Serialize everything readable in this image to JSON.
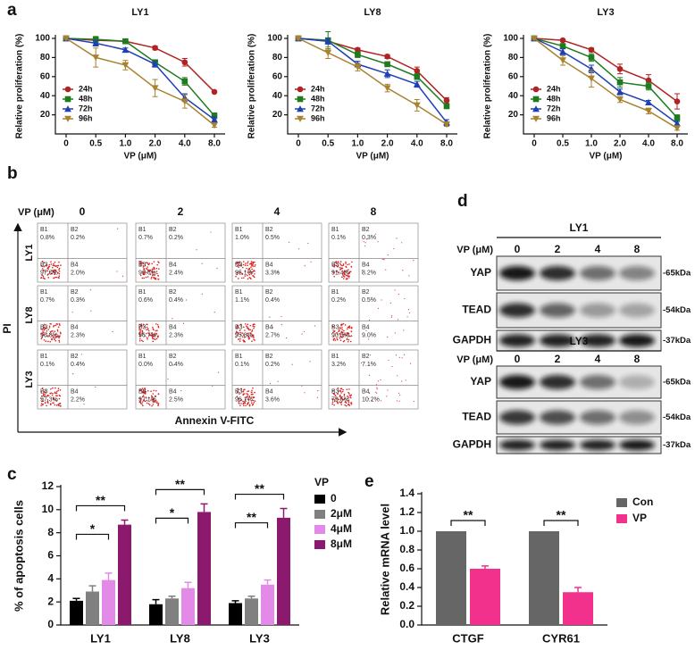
{
  "panel_labels": [
    "a",
    "b",
    "c",
    "d",
    "e"
  ],
  "chart_data": [
    {
      "type": "line",
      "title": "LY1",
      "xlabel": "VP (μM)",
      "ylabel": "Relative proliferation (%)",
      "categories": [
        "0",
        "0.5",
        "1.0",
        "2.0",
        "4.0",
        "8.0"
      ],
      "ylim": [
        0,
        100
      ],
      "yticks": [
        20,
        40,
        60,
        80,
        100
      ],
      "legend": "lower left",
      "series": [
        {
          "name": "24h",
          "color": "#b22222",
          "marker": "circle",
          "values": [
            100,
            98,
            97,
            90,
            75,
            44
          ],
          "errors": [
            1,
            2,
            1,
            2,
            4,
            1
          ]
        },
        {
          "name": "48h",
          "color": "#1e7b1e",
          "marker": "square",
          "values": [
            100,
            99,
            97,
            75,
            55,
            19
          ],
          "errors": [
            1,
            3,
            1,
            2,
            4,
            3
          ]
        },
        {
          "name": "72h",
          "color": "#1f3fb4",
          "marker": "triangle",
          "values": [
            100,
            95,
            88,
            73,
            38,
            15
          ],
          "errors": [
            1,
            3,
            2,
            3,
            4,
            3
          ]
        },
        {
          "name": "96h",
          "color": "#a8822e",
          "marker": "triangle-down",
          "values": [
            100,
            80,
            72,
            48,
            34,
            9
          ],
          "errors": [
            1,
            10,
            5,
            9,
            7,
            2
          ]
        }
      ]
    },
    {
      "type": "line",
      "title": "LY8",
      "xlabel": "VP (μM)",
      "ylabel": "Relative proliferation (%)",
      "categories": [
        "0",
        "0.5",
        "1.0",
        "2.0",
        "4.0",
        "8.0"
      ],
      "ylim": [
        0,
        100
      ],
      "yticks": [
        20,
        40,
        60,
        80,
        100
      ],
      "legend": "lower left",
      "series": [
        {
          "name": "24h",
          "color": "#b22222",
          "marker": "circle",
          "values": [
            100,
            97,
            88,
            81,
            66,
            35
          ],
          "errors": [
            1,
            2,
            2,
            2,
            4,
            3
          ]
        },
        {
          "name": "48h",
          "color": "#1e7b1e",
          "marker": "square",
          "values": [
            100,
            98,
            83,
            73,
            60,
            29
          ],
          "errors": [
            1,
            9,
            3,
            2,
            3,
            2
          ]
        },
        {
          "name": "72h",
          "color": "#1f3fb4",
          "marker": "triangle",
          "values": [
            100,
            97,
            73,
            63,
            52,
            12
          ],
          "errors": [
            1,
            3,
            3,
            4,
            3,
            3
          ]
        },
        {
          "name": "96h",
          "color": "#a8822e",
          "marker": "triangle-down",
          "values": [
            100,
            85,
            70,
            48,
            30,
            10
          ],
          "errors": [
            1,
            6,
            4,
            4,
            6,
            2
          ]
        }
      ]
    },
    {
      "type": "line",
      "title": "LY3",
      "xlabel": "VP (μM)",
      "ylabel": "Relative proliferation (%)",
      "categories": [
        "0",
        "0.5",
        "1.0",
        "2.0",
        "4.0",
        "8.0"
      ],
      "ylim": [
        0,
        100
      ],
      "yticks": [
        20,
        40,
        60,
        80,
        100
      ],
      "legend": "lower left",
      "series": [
        {
          "name": "24h",
          "color": "#b22222",
          "marker": "circle",
          "values": [
            100,
            98,
            88,
            68,
            56,
            34
          ],
          "errors": [
            1,
            1,
            2,
            5,
            6,
            8
          ]
        },
        {
          "name": "48h",
          "color": "#1e7b1e",
          "marker": "square",
          "values": [
            100,
            92,
            80,
            54,
            50,
            17
          ],
          "errors": [
            1,
            2,
            4,
            5,
            4,
            3
          ]
        },
        {
          "name": "72h",
          "color": "#1f3fb4",
          "marker": "triangle",
          "values": [
            100,
            86,
            68,
            44,
            33,
            11
          ],
          "errors": [
            1,
            3,
            4,
            3,
            2,
            2
          ]
        },
        {
          "name": "96h",
          "color": "#a8822e",
          "marker": "triangle-down",
          "values": [
            100,
            77,
            58,
            36,
            24,
            6
          ],
          "errors": [
            1,
            5,
            9,
            3,
            3,
            2
          ]
        }
      ]
    },
    {
      "type": "bar",
      "ylabel": "% of apoptosis cells",
      "categories": [
        "LY1",
        "LY8",
        "LY3"
      ],
      "ylim": [
        0,
        12
      ],
      "yticks": [
        0,
        2,
        4,
        6,
        8,
        10,
        12
      ],
      "legend": "right",
      "legend_title": "VP",
      "series": [
        {
          "name": "0",
          "color": "#000000",
          "values": [
            2.1,
            1.8,
            1.9
          ],
          "errors": [
            0.2,
            0.4,
            0.2
          ]
        },
        {
          "name": "2μM",
          "color": "#808080",
          "values": [
            2.9,
            2.3,
            2.3
          ],
          "errors": [
            0.5,
            0.2,
            0.2
          ]
        },
        {
          "name": "4μM",
          "color": "#e38ae8",
          "values": [
            3.9,
            3.2,
            3.5
          ],
          "errors": [
            0.6,
            0.5,
            0.4
          ]
        },
        {
          "name": "8μM",
          "color": "#8b1a6e",
          "values": [
            8.7,
            9.8,
            9.3
          ],
          "errors": [
            0.4,
            0.7,
            0.8
          ]
        }
      ],
      "annotations": [
        "**",
        "*",
        "**",
        "*",
        "**",
        "**"
      ]
    },
    {
      "type": "bar",
      "ylabel": "Relative mRNA level",
      "categories": [
        "CTGF",
        "CYR61"
      ],
      "ylim": [
        0,
        1.4
      ],
      "yticks": [
        {
          "value": 0,
          "label": "0.0"
        },
        {
          "value": 0.2,
          "label": "0.2"
        },
        {
          "value": 0.4,
          "label": "0.4"
        },
        {
          "value": 0.6,
          "label": "0.6"
        },
        {
          "value": 0.8,
          "label": "0.8"
        },
        {
          "value": 1,
          "label": "1.0"
        },
        {
          "value": 1.2,
          "label": "1.2"
        },
        {
          "value": 1.4,
          "label": "1.4"
        }
      ],
      "legend": "upper right",
      "series": [
        {
          "name": "Con",
          "color": "#666666",
          "values": [
            1,
            1
          ],
          "errors": [
            0,
            0
          ]
        },
        {
          "name": "VP",
          "color": "#f2318c",
          "values": [
            0.6,
            0.35
          ],
          "errors": [
            0.03,
            0.05
          ]
        }
      ],
      "annotations": [
        "**",
        "**"
      ]
    }
  ],
  "flow": {
    "axis_title": "VP (μM)",
    "columns": [
      "0",
      "2",
      "4",
      "8"
    ],
    "gate_names": [
      "B1",
      "B2",
      "B3",
      "B4"
    ],
    "ylabel": "PI",
    "xlabel": "Annexin V-FITC",
    "rows": [
      {
        "label": "LY1",
        "cells": [
          [
            "0.8%",
            "0.2%",
            "97.0%",
            "2.0%"
          ],
          [
            "0.7%",
            "0.2%",
            "96.6%",
            "2.4%"
          ],
          [
            "1.0%",
            "0.5%",
            "95.1%",
            "3.3%"
          ],
          [
            "0.1%",
            "0.3%",
            "91.4%",
            "8.2%"
          ]
        ]
      },
      {
        "label": "LY8",
        "cells": [
          [
            "0.7%",
            "0.3%",
            "96.8%",
            "2.3%"
          ],
          [
            "0.6%",
            "0.4%",
            "96.7%",
            "2.3%"
          ],
          [
            "1.1%",
            "0.4%",
            "95.8%",
            "2.7%"
          ],
          [
            "0.2%",
            "0.5%",
            "90.3%",
            "9.0%"
          ]
        ]
      },
      {
        "label": "LY3",
        "cells": [
          [
            "0.1%",
            "0.4%",
            "97.3%",
            "2.2%"
          ],
          [
            "0.0%",
            "0.4%",
            "97.1%",
            "2.5%"
          ],
          [
            "0.1%",
            "0.2%",
            "96.1%",
            "3.6%"
          ],
          [
            "3.2%",
            "7.1%",
            "79.5%",
            "10.2%"
          ]
        ]
      }
    ]
  },
  "western": [
    {
      "title": "LY1",
      "axis_title": "VP (μM)",
      "lanes": [
        "0",
        "2",
        "4",
        "8"
      ],
      "rows": [
        {
          "protein": "YAP",
          "size": "-65kDa"
        },
        {
          "protein": "TEAD",
          "size": "-54kDa"
        },
        {
          "protein": "GAPDH",
          "size": "-37kDa"
        }
      ]
    },
    {
      "title": "LY3",
      "axis_title": "VP (μM)",
      "lanes": [
        "0",
        "2",
        "4",
        "8"
      ],
      "rows": [
        {
          "protein": "YAP",
          "size": "-65kDa"
        },
        {
          "protein": "TEAD",
          "size": "-54kDa"
        },
        {
          "protein": "GAPDH",
          "size": "-37kDa"
        }
      ]
    }
  ]
}
